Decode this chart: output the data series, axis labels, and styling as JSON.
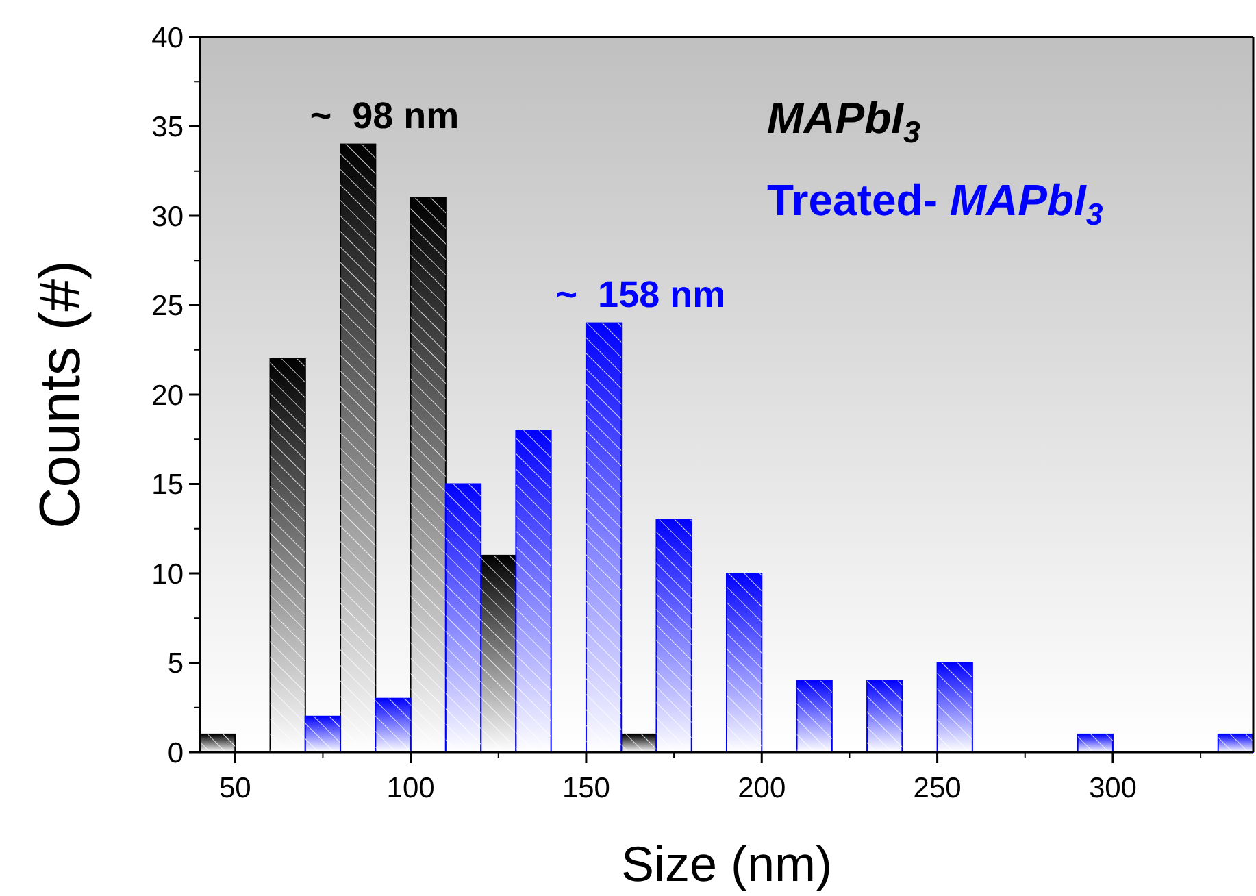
{
  "chart_data": {
    "type": "histogram",
    "xlabel": "Size (nm)",
    "ylabel": "Counts (#)",
    "bins": [
      40,
      50,
      60,
      70,
      80,
      90,
      100,
      110,
      120,
      130,
      140,
      150,
      160,
      170,
      180,
      190,
      200,
      210,
      220,
      230,
      240,
      250,
      260,
      270,
      280,
      290,
      300,
      310,
      320,
      330,
      340
    ],
    "series": [
      {
        "name": "MAPbI$_{3}$",
        "color": "#000000",
        "values": [
          1,
          0,
          22,
          0,
          34,
          0,
          31,
          0,
          11,
          0,
          0,
          0,
          1,
          0,
          0,
          0,
          0,
          0,
          0,
          0,
          0,
          0,
          0,
          0,
          0,
          0,
          0,
          0,
          0,
          0
        ]
      },
      {
        "name": "Treated- MAPbI$_{3}$",
        "color": "#0000ff",
        "values": [
          0,
          0,
          0,
          2,
          0,
          3,
          0,
          15,
          0,
          18,
          0,
          24,
          0,
          13,
          0,
          10,
          0,
          4,
          0,
          4,
          0,
          5,
          0,
          0,
          0,
          1,
          0,
          0,
          0,
          1
        ]
      }
    ],
    "xlim": [
      40,
      340
    ],
    "xticks": [
      50,
      100,
      150,
      200,
      250,
      300
    ],
    "ylim": [
      0,
      40
    ],
    "yticks": [
      0,
      5,
      10,
      15,
      20,
      25,
      30,
      35,
      40
    ],
    "legend": "top right",
    "annotations": [
      {
        "text": "~  98 nm",
        "x": 85,
        "y": 34
      },
      {
        "text": "~  158 nm",
        "x": 155,
        "y": 24
      }
    ]
  }
}
